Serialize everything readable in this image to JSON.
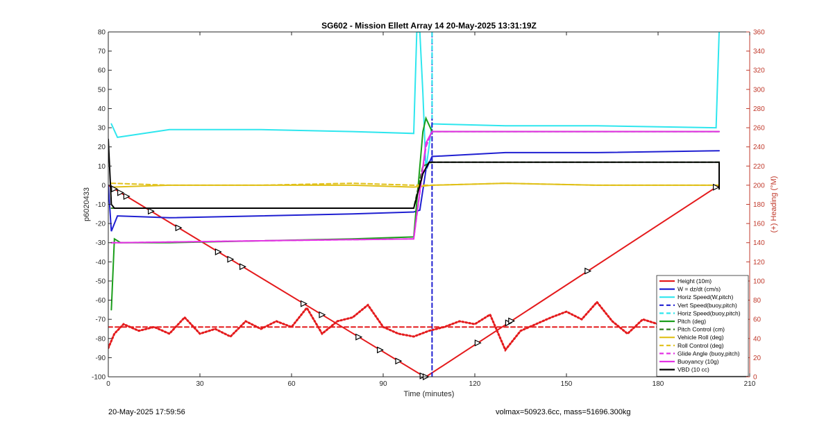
{
  "footer": {
    "left": "20-May-2025 17:59:56",
    "right": "volmax=50923.6cc, mass=51696.300kg"
  },
  "chart_data": {
    "type": "line",
    "title": "SG602 - Mission Ellett Array 14 20-May-2025 13:31:19Z",
    "xlabel": "Time (minutes)",
    "ylabel": "p6020433",
    "y2label": "(+) Heading (°M)",
    "xlim": [
      0,
      210
    ],
    "ylim": [
      -100,
      80
    ],
    "y2lim": [
      0,
      360
    ],
    "xticks": [
      0,
      30,
      60,
      90,
      120,
      150,
      180,
      210
    ],
    "yticks": [
      -100,
      -90,
      -80,
      -70,
      -60,
      -50,
      -40,
      -30,
      -20,
      -10,
      0,
      10,
      20,
      30,
      40,
      50,
      60,
      70,
      80
    ],
    "y2ticks": [
      0,
      20,
      40,
      60,
      80,
      100,
      120,
      140,
      160,
      180,
      200,
      220,
      240,
      260,
      280,
      300,
      320,
      340,
      360
    ],
    "grid": false,
    "legend_position": "bottom-right",
    "colors": {
      "red": "#e41a1c",
      "blue": "#1f1fd1",
      "cyan": "#2ee6ee",
      "green": "#1a9e1a",
      "olive": "#2e7d1c",
      "yellow": "#e0c018",
      "magenta": "#e433e4",
      "black": "#000000",
      "axis2": "#c0392b"
    },
    "legend": [
      "Height (10m)",
      "W = dz/dt (cm/s)",
      "Horiz Speed(W,pitch)",
      "Vert Speed(buoy,pitch)",
      "Horiz Speed(buoy,pitch)",
      "Pitch (deg)",
      "Pitch Control (cm)",
      "Vehicle Roll (deg)",
      "Roll Control (deg)",
      "Glide Angle (buoy,pitch)",
      "Buoyancy (10g)",
      "VBD (10 cc)"
    ],
    "series": [
      {
        "name": "Height (10m)",
        "color": "red",
        "style": "solid",
        "axis": "left",
        "x": [
          0,
          1,
          103,
          104,
          200
        ],
        "y": [
          0,
          -1,
          -99.5,
          -100,
          0
        ]
      },
      {
        "name": "W = dz/dt (cm/s)",
        "color": "blue",
        "style": "solid",
        "axis": "left",
        "x": [
          0,
          1,
          3,
          20,
          50,
          80,
          100,
          102,
          104,
          106,
          130,
          160,
          200
        ],
        "y": [
          0,
          -24,
          -16,
          -17,
          -16,
          -15,
          -14,
          -13,
          8,
          15,
          17,
          17,
          18
        ]
      },
      {
        "name": "Horiz Speed(W,pitch)",
        "color": "cyan",
        "style": "solid",
        "axis": "left",
        "x": [
          1,
          3,
          20,
          50,
          80,
          100,
          101,
          102,
          103,
          104,
          106,
          130,
          160,
          199,
          200
        ],
        "y": [
          32,
          25,
          29,
          29,
          28,
          27,
          80,
          80,
          48,
          8,
          32,
          31,
          31,
          30,
          80
        ]
      },
      {
        "name": "Vert Speed(buoy,pitch)",
        "color": "blue",
        "style": "dashed",
        "axis": "left",
        "x": [
          106,
          106
        ],
        "y": [
          -100,
          80
        ]
      },
      {
        "name": "Horiz Speed(buoy,pitch)",
        "color": "cyan",
        "style": "dashed",
        "axis": "left",
        "x": [
          106,
          106
        ],
        "y": [
          80,
          35
        ]
      },
      {
        "name": "Pitch (deg)",
        "color": "green",
        "style": "solid",
        "axis": "left",
        "x": [
          1,
          2,
          4,
          20,
          50,
          80,
          100,
          103,
          104,
          106,
          130,
          160,
          200
        ],
        "y": [
          -65,
          -28,
          -30,
          -30,
          -29,
          -28,
          -27,
          28,
          35,
          28,
          28,
          28,
          28
        ]
      },
      {
        "name": "Pitch Control (cm)",
        "color": "olive",
        "style": "dashed",
        "axis": "left",
        "x": [
          1,
          4,
          100,
          103,
          106,
          200
        ],
        "y": [
          -12,
          -12,
          -12,
          10,
          12,
          12
        ]
      },
      {
        "name": "Vehicle Roll (deg)",
        "color": "yellow",
        "style": "solid",
        "axis": "left",
        "x": [
          1,
          20,
          50,
          80,
          100,
          106,
          130,
          160,
          200
        ],
        "y": [
          -1,
          0,
          0,
          0,
          -1,
          0,
          1,
          0,
          0
        ]
      },
      {
        "name": "Roll Control (deg)",
        "color": "yellow",
        "style": "dashed",
        "axis": "left",
        "x": [
          1,
          20,
          50,
          80,
          100,
          106,
          130,
          160,
          200
        ],
        "y": [
          1,
          0,
          0,
          1,
          0,
          0,
          1,
          0,
          0
        ]
      },
      {
        "name": "Glide Angle (buoy,pitch)",
        "color": "magenta",
        "style": "dashed",
        "axis": "left",
        "x": [
          1,
          4,
          50,
          100,
          104,
          106,
          200
        ],
        "y": [
          -30,
          -30,
          -29,
          -28,
          20,
          28,
          28
        ]
      },
      {
        "name": "Buoyancy (10g)",
        "color": "magenta",
        "style": "solid",
        "axis": "left",
        "x": [
          1,
          4,
          50,
          100,
          104,
          106,
          200
        ],
        "y": [
          -30,
          -30,
          -29,
          -28,
          22,
          28,
          28
        ]
      },
      {
        "name": "VBD (10 cc)",
        "color": "black",
        "style": "solid",
        "axis": "left",
        "x": [
          0,
          1,
          2,
          50,
          100,
          103,
          105,
          200,
          200
        ],
        "y": [
          24,
          -10,
          -12,
          -12,
          -12,
          6,
          12,
          12,
          -2
        ]
      },
      {
        "name": "Heading",
        "color": "red",
        "style": "dotted",
        "axis": "right",
        "x": [
          0,
          2,
          5,
          10,
          15,
          20,
          25,
          30,
          35,
          40,
          45,
          50,
          55,
          60,
          65,
          70,
          75,
          80,
          85,
          90,
          95,
          100,
          105,
          110,
          115,
          120,
          125,
          130,
          135,
          140,
          145,
          150,
          155,
          160,
          165,
          170,
          175,
          180,
          185,
          190,
          195,
          200
        ],
        "y": [
          30,
          45,
          55,
          48,
          52,
          45,
          62,
          45,
          50,
          42,
          58,
          50,
          58,
          52,
          72,
          45,
          58,
          62,
          75,
          52,
          45,
          42,
          48,
          52,
          58,
          55,
          65,
          28,
          48,
          55,
          62,
          68,
          60,
          78,
          58,
          45,
          60,
          55,
          42,
          55,
          52,
          58
        ]
      },
      {
        "name": "Heading mean",
        "color": "red",
        "style": "dashed",
        "axis": "right",
        "x": [
          0,
          200
        ],
        "y": [
          52,
          52
        ]
      }
    ],
    "markers": {
      "series": "Height (10m)",
      "x": [
        2,
        4,
        6,
        14,
        23,
        36,
        40,
        44,
        64,
        70,
        82,
        89,
        95,
        103,
        104,
        121,
        131,
        132,
        157,
        199
      ]
    }
  }
}
